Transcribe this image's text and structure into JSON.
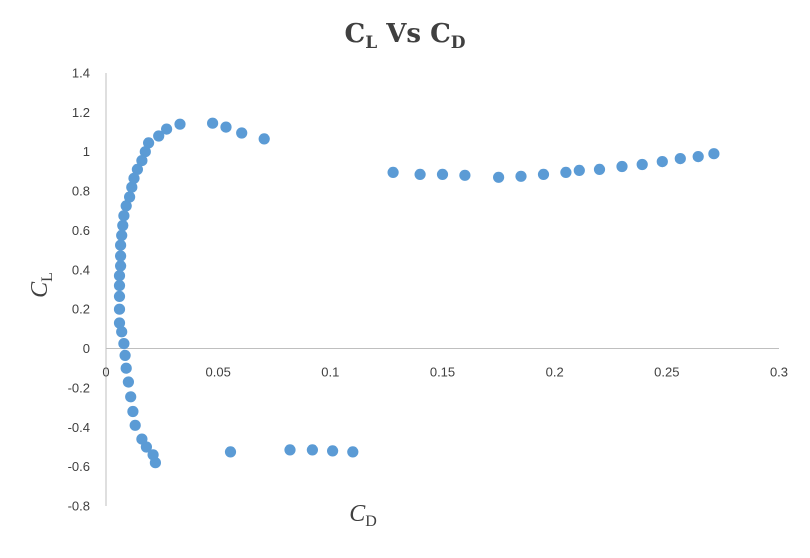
{
  "chart_data": {
    "type": "scatter",
    "title": {
      "main": "C",
      "sub": "L",
      "mid": " Vs ",
      "main2": "C",
      "sub2": "D"
    },
    "xlabel": {
      "main": "C",
      "sub": "D"
    },
    "ylabel": {
      "main": "C",
      "sub": "L"
    },
    "xlim": [
      0,
      0.3
    ],
    "ylim": [
      -0.8,
      1.4
    ],
    "xticks": [
      0,
      0.05,
      0.1,
      0.15,
      0.2,
      0.25,
      0.3
    ],
    "xtick_labels": [
      "0",
      "0.05",
      "0.1",
      "0.15",
      "0.2",
      "0.25",
      "0.3"
    ],
    "yticks": [
      1.4,
      1.2,
      1.0,
      0.8,
      0.6,
      0.4,
      0.2,
      0,
      -0.2,
      -0.4,
      -0.6,
      -0.8
    ],
    "ytick_labels": [
      "1.4",
      "1.2",
      "1",
      "0.8",
      "0.6",
      "0.4",
      "0.2",
      "0",
      "-0.2",
      "-0.4",
      "-0.6",
      "-0.8"
    ],
    "grid": false,
    "legend": false,
    "marker_color": "#5b9bd5",
    "points": [
      [
        0.022,
        -0.58
      ],
      [
        0.021,
        -0.54
      ],
      [
        0.018,
        -0.5
      ],
      [
        0.016,
        -0.46
      ],
      [
        0.013,
        -0.39
      ],
      [
        0.012,
        -0.32
      ],
      [
        0.011,
        -0.245
      ],
      [
        0.01,
        -0.17
      ],
      [
        0.009,
        -0.1
      ],
      [
        0.0085,
        -0.035
      ],
      [
        0.008,
        0.025
      ],
      [
        0.007,
        0.085
      ],
      [
        0.006,
        0.13
      ],
      [
        0.006,
        0.2
      ],
      [
        0.006,
        0.265
      ],
      [
        0.006,
        0.32
      ],
      [
        0.006,
        0.37
      ],
      [
        0.0065,
        0.42
      ],
      [
        0.0065,
        0.47
      ],
      [
        0.0065,
        0.525
      ],
      [
        0.007,
        0.575
      ],
      [
        0.0075,
        0.625
      ],
      [
        0.008,
        0.675
      ],
      [
        0.009,
        0.725
      ],
      [
        0.0105,
        0.77
      ],
      [
        0.0115,
        0.82
      ],
      [
        0.0125,
        0.865
      ],
      [
        0.014,
        0.91
      ],
      [
        0.016,
        0.955
      ],
      [
        0.0175,
        1.0
      ],
      [
        0.019,
        1.045
      ],
      [
        0.0235,
        1.08
      ],
      [
        0.027,
        1.115
      ],
      [
        0.033,
        1.14
      ],
      [
        0.0475,
        1.145
      ],
      [
        0.0535,
        1.125
      ],
      [
        0.0605,
        1.095
      ],
      [
        0.0705,
        1.065
      ],
      [
        0.128,
        0.895
      ],
      [
        0.14,
        0.885
      ],
      [
        0.15,
        0.885
      ],
      [
        0.16,
        0.88
      ],
      [
        0.175,
        0.87
      ],
      [
        0.185,
        0.875
      ],
      [
        0.195,
        0.885
      ],
      [
        0.205,
        0.895
      ],
      [
        0.211,
        0.905
      ],
      [
        0.22,
        0.91
      ],
      [
        0.23,
        0.925
      ],
      [
        0.239,
        0.935
      ],
      [
        0.248,
        0.95
      ],
      [
        0.256,
        0.965
      ],
      [
        0.264,
        0.975
      ],
      [
        0.271,
        0.99
      ],
      [
        0.0555,
        -0.525
      ],
      [
        0.082,
        -0.515
      ],
      [
        0.092,
        -0.515
      ],
      [
        0.101,
        -0.52
      ],
      [
        0.11,
        -0.525
      ]
    ]
  }
}
